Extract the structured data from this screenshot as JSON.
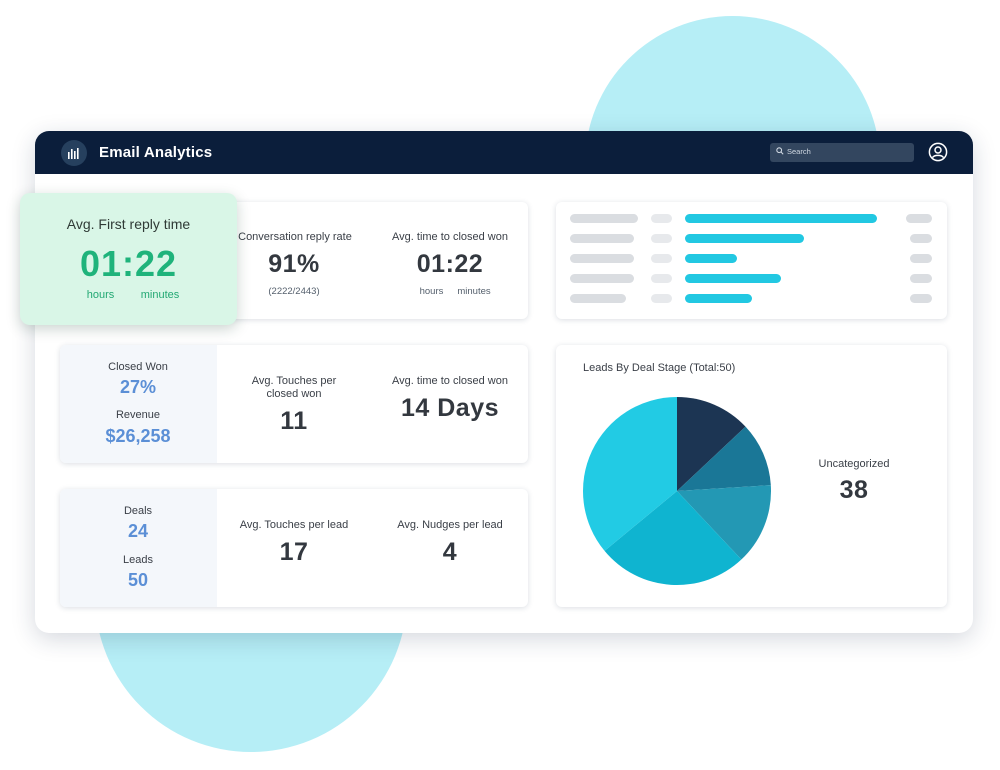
{
  "app": {
    "title": "Email Analytics",
    "logo_icon": "bar-chart-icon",
    "user_icon": "user-circle-icon"
  },
  "search": {
    "placeholder": "Search"
  },
  "colors": {
    "topbar": "#0b1e3b",
    "accent_cyan": "#22c8e2",
    "green": "#1fb37b",
    "blue_value": "#5b8fd6",
    "highlight_card": "#d9f6e7"
  },
  "first_reply": {
    "label": "Avg. First reply time",
    "value": "01:22",
    "unit_hours": "hours",
    "unit_minutes": "minutes"
  },
  "reply_stats": {
    "rate_label": "Conversation reply rate",
    "rate_value": "91%",
    "rate_detail": "(2222/2443)",
    "closed_label": "Avg. time to closed won",
    "closed_value": "01:22",
    "closed_hours": "hours",
    "closed_minutes": "minutes"
  },
  "won_stats": {
    "closed_won_label": "Closed Won",
    "closed_won_value": "27%",
    "revenue_label": "Revenue",
    "revenue_value": "$26,258",
    "touches_label_line1": "Avg. Touches per",
    "touches_label_line2": "closed won",
    "touches_value": "11",
    "time_label": "Avg. time to closed won",
    "time_value": "14 Days"
  },
  "lead_stats": {
    "deals_label": "Deals",
    "deals_value": "24",
    "leads_label": "Leads",
    "leads_value": "50",
    "touches_label": "Avg. Touches per lead",
    "touches_value": "17",
    "nudges_label": "Avg. Nudges per lead",
    "nudges_value": "4"
  },
  "chart_data": [
    {
      "type": "bar",
      "orientation": "horizontal",
      "categories": [
        "",
        "",
        "",
        "",
        ""
      ],
      "values": [
        1.0,
        0.62,
        0.27,
        0.5,
        0.35
      ],
      "labels_visible": false,
      "color": "#22c8e2"
    },
    {
      "type": "pie",
      "title": "Leads By Deal Stage (Total:50)",
      "slices": [
        {
          "label": "",
          "value": 0.13,
          "color": "#1c3553"
        },
        {
          "label": "",
          "value": 0.11,
          "color": "#1a7797"
        },
        {
          "label": "",
          "value": 0.14,
          "color": "#2398b4"
        },
        {
          "label": "",
          "value": 0.26,
          "color": "#0fb4d0"
        },
        {
          "label": "",
          "value": 0.36,
          "color": "#22cbe4"
        }
      ],
      "callout_label": "Uncategorized",
      "callout_value": "38"
    }
  ]
}
